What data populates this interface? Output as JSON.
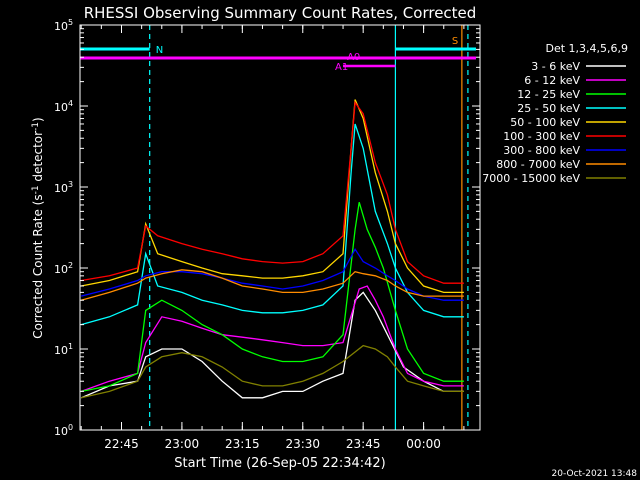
{
  "chart_data": {
    "type": "line",
    "title": "RHESSI Observing Summary Count Rates, Corrected",
    "xlabel": "Start Time (26-Sep-05 22:34:42)",
    "ylabel": "Corrected Count Rate (s^-1 detector^-1)",
    "ylabel_parts": {
      "main": "Corrected Count Rate (s",
      "sup1": "-1",
      "mid": " detector",
      "sup2": "-1",
      "end": ")"
    },
    "y_scale": "log",
    "ylim": [
      1,
      100000
    ],
    "xlim": [
      "22:34:42",
      "00:14:00"
    ],
    "x_ticks": [
      "22:45",
      "23:00",
      "23:15",
      "23:30",
      "23:45",
      "00:00"
    ],
    "y_tick_labels": [
      {
        "base": "10",
        "exp": "0"
      },
      {
        "base": "10",
        "exp": "1"
      },
      {
        "base": "10",
        "exp": "2"
      },
      {
        "base": "10",
        "exp": "3"
      },
      {
        "base": "10",
        "exp": "4"
      },
      {
        "base": "10",
        "exp": "5"
      }
    ],
    "legend_title": "Det 1,3,4,5,6,9",
    "legend_position": "right",
    "footer_date": "20-Oct-2021 13:48",
    "annotations": {
      "night_bars": [
        {
          "label": "N",
          "start": "22:34:42",
          "end": "22:52:00",
          "color": "#00ffff"
        },
        {
          "label": "",
          "start": "23:53:00",
          "end": "00:13:00",
          "color": "#00ffff"
        }
      ],
      "attenuator_bars": [
        {
          "start": "22:34:42",
          "end": "23:53:00",
          "color": "#ff00ff"
        },
        {
          "start": "23:53:00",
          "end": "00:13:00",
          "color": "#ff00ff"
        }
      ],
      "attenuator_labels": [
        {
          "label": "A0",
          "time": "23:41:00"
        },
        {
          "label": "A1",
          "time": "23:38:00"
        }
      ],
      "saa_label": {
        "label": "S",
        "time": "00:09:00",
        "color": "#ff8c00"
      },
      "vertical_lines": [
        {
          "time": "22:52:00",
          "color": "#00ffff",
          "style": "dashed"
        },
        {
          "time": "23:53:00",
          "color": "#00ffff",
          "style": "solid"
        },
        {
          "time": "00:09:30",
          "color": "#ff8c00",
          "style": "solid"
        },
        {
          "time": "00:11:00",
          "color": "#00ffff",
          "style": "dashed"
        }
      ]
    },
    "series": [
      {
        "name": "3 - 6 keV",
        "color": "#ffffff",
        "points": [
          [
            "22:35",
            2.5
          ],
          [
            "22:42",
            3.5
          ],
          [
            "22:49",
            4
          ],
          [
            "22:51",
            8
          ],
          [
            "22:55",
            10
          ],
          [
            "23:00",
            10
          ],
          [
            "23:05",
            7
          ],
          [
            "23:10",
            4
          ],
          [
            "23:15",
            2.5
          ],
          [
            "23:20",
            2.5
          ],
          [
            "23:25",
            3
          ],
          [
            "23:30",
            3
          ],
          [
            "23:35",
            4
          ],
          [
            "23:40",
            5
          ],
          [
            "23:43",
            40
          ],
          [
            "23:45",
            50
          ],
          [
            "23:48",
            30
          ],
          [
            "23:52",
            12
          ],
          [
            "23:55",
            6
          ],
          [
            "24:00",
            4
          ],
          [
            "24:05",
            3
          ],
          [
            "24:10",
            3
          ]
        ]
      },
      {
        "name": "6 - 12 keV",
        "color": "#ff00ff",
        "points": [
          [
            "22:35",
            3
          ],
          [
            "22:42",
            4
          ],
          [
            "22:49",
            5
          ],
          [
            "22:51",
            12
          ],
          [
            "22:55",
            25
          ],
          [
            "23:00",
            22
          ],
          [
            "23:05",
            18
          ],
          [
            "23:10",
            15
          ],
          [
            "23:15",
            14
          ],
          [
            "23:20",
            13
          ],
          [
            "23:25",
            12
          ],
          [
            "23:30",
            11
          ],
          [
            "23:35",
            11
          ],
          [
            "23:40",
            12
          ],
          [
            "23:44",
            55
          ],
          [
            "23:46",
            60
          ],
          [
            "23:48",
            40
          ],
          [
            "23:50",
            25
          ],
          [
            "23:53",
            10
          ],
          [
            "23:56",
            5
          ],
          [
            "24:00",
            4
          ],
          [
            "24:05",
            3.5
          ],
          [
            "24:10",
            3.5
          ]
        ]
      },
      {
        "name": "12 - 25 keV",
        "color": "#00ff00",
        "points": [
          [
            "22:35",
            3
          ],
          [
            "22:42",
            3.5
          ],
          [
            "22:49",
            5
          ],
          [
            "22:51",
            30
          ],
          [
            "22:55",
            40
          ],
          [
            "23:00",
            30
          ],
          [
            "23:05",
            20
          ],
          [
            "23:10",
            15
          ],
          [
            "23:15",
            10
          ],
          [
            "23:20",
            8
          ],
          [
            "23:25",
            7
          ],
          [
            "23:30",
            7
          ],
          [
            "23:35",
            8
          ],
          [
            "23:40",
            15
          ],
          [
            "23:43",
            300
          ],
          [
            "23:44",
            650
          ],
          [
            "23:46",
            300
          ],
          [
            "23:48",
            180
          ],
          [
            "23:50",
            100
          ],
          [
            "23:53",
            30
          ],
          [
            "23:56",
            10
          ],
          [
            "24:00",
            5
          ],
          [
            "24:05",
            4
          ],
          [
            "24:10",
            4
          ]
        ]
      },
      {
        "name": "25 - 50 keV",
        "color": "#00ffff",
        "points": [
          [
            "22:35",
            20
          ],
          [
            "22:42",
            25
          ],
          [
            "22:49",
            35
          ],
          [
            "22:51",
            150
          ],
          [
            "22:54",
            60
          ],
          [
            "23:00",
            50
          ],
          [
            "23:05",
            40
          ],
          [
            "23:10",
            35
          ],
          [
            "23:15",
            30
          ],
          [
            "23:20",
            28
          ],
          [
            "23:25",
            28
          ],
          [
            "23:30",
            30
          ],
          [
            "23:35",
            35
          ],
          [
            "23:40",
            60
          ],
          [
            "23:42",
            1500
          ],
          [
            "23:43",
            6000
          ],
          [
            "23:45",
            3000
          ],
          [
            "23:48",
            500
          ],
          [
            "23:51",
            200
          ],
          [
            "23:53",
            100
          ],
          [
            "23:56",
            50
          ],
          [
            "24:00",
            30
          ],
          [
            "24:05",
            25
          ],
          [
            "24:10",
            25
          ]
        ]
      },
      {
        "name": "50 - 100 keV",
        "color": "#ffd700",
        "points": [
          [
            "22:35",
            60
          ],
          [
            "22:42",
            70
          ],
          [
            "22:49",
            90
          ],
          [
            "22:51",
            350
          ],
          [
            "22:54",
            150
          ],
          [
            "23:00",
            120
          ],
          [
            "23:05",
            100
          ],
          [
            "23:10",
            85
          ],
          [
            "23:15",
            80
          ],
          [
            "23:20",
            75
          ],
          [
            "23:25",
            75
          ],
          [
            "23:30",
            80
          ],
          [
            "23:35",
            90
          ],
          [
            "23:40",
            150
          ],
          [
            "23:42",
            3000
          ],
          [
            "23:43",
            12000
          ],
          [
            "23:45",
            7000
          ],
          [
            "23:48",
            1500
          ],
          [
            "23:51",
            500
          ],
          [
            "23:53",
            200
          ],
          [
            "23:56",
            100
          ],
          [
            "24:00",
            60
          ],
          [
            "24:05",
            50
          ],
          [
            "24:10",
            50
          ]
        ]
      },
      {
        "name": "100 - 300 keV",
        "color": "#ff0000",
        "points": [
          [
            "22:35",
            70
          ],
          [
            "22:42",
            80
          ],
          [
            "22:49",
            100
          ],
          [
            "22:51",
            330
          ],
          [
            "22:54",
            250
          ],
          [
            "23:00",
            200
          ],
          [
            "23:05",
            170
          ],
          [
            "23:10",
            150
          ],
          [
            "23:15",
            130
          ],
          [
            "23:20",
            120
          ],
          [
            "23:25",
            115
          ],
          [
            "23:30",
            120
          ],
          [
            "23:35",
            150
          ],
          [
            "23:40",
            250
          ],
          [
            "23:42",
            3000
          ],
          [
            "23:43",
            11000
          ],
          [
            "23:45",
            8000
          ],
          [
            "23:48",
            2000
          ],
          [
            "23:51",
            800
          ],
          [
            "23:53",
            300
          ],
          [
            "23:56",
            120
          ],
          [
            "24:00",
            80
          ],
          [
            "24:05",
            65
          ],
          [
            "24:10",
            65
          ]
        ]
      },
      {
        "name": "300 - 800 keV",
        "color": "#0000ff",
        "points": [
          [
            "22:35",
            45
          ],
          [
            "22:42",
            55
          ],
          [
            "22:49",
            70
          ],
          [
            "22:51",
            80
          ],
          [
            "22:55",
            90
          ],
          [
            "23:00",
            90
          ],
          [
            "23:05",
            85
          ],
          [
            "23:10",
            75
          ],
          [
            "23:15",
            65
          ],
          [
            "23:20",
            60
          ],
          [
            "23:25",
            55
          ],
          [
            "23:30",
            60
          ],
          [
            "23:35",
            70
          ],
          [
            "23:40",
            90
          ],
          [
            "23:43",
            170
          ],
          [
            "23:45",
            120
          ],
          [
            "23:48",
            100
          ],
          [
            "23:51",
            80
          ],
          [
            "23:53",
            70
          ],
          [
            "23:56",
            55
          ],
          [
            "24:00",
            45
          ],
          [
            "24:05",
            40
          ],
          [
            "24:10",
            40
          ]
        ]
      },
      {
        "name": "800 - 7000 keV",
        "color": "#ff8c00",
        "points": [
          [
            "22:35",
            40
          ],
          [
            "22:42",
            50
          ],
          [
            "22:49",
            65
          ],
          [
            "22:51",
            75
          ],
          [
            "22:55",
            85
          ],
          [
            "23:00",
            95
          ],
          [
            "23:05",
            90
          ],
          [
            "23:10",
            75
          ],
          [
            "23:15",
            60
          ],
          [
            "23:20",
            55
          ],
          [
            "23:25",
            50
          ],
          [
            "23:30",
            50
          ],
          [
            "23:35",
            55
          ],
          [
            "23:40",
            65
          ],
          [
            "23:43",
            90
          ],
          [
            "23:45",
            85
          ],
          [
            "23:48",
            80
          ],
          [
            "23:51",
            70
          ],
          [
            "23:53",
            60
          ],
          [
            "23:56",
            50
          ],
          [
            "24:00",
            45
          ],
          [
            "24:05",
            45
          ],
          [
            "24:10",
            45
          ]
        ]
      },
      {
        "name": "7000 - 15000 keV",
        "color": "#808000",
        "points": [
          [
            "22:35",
            2.5
          ],
          [
            "22:42",
            3
          ],
          [
            "22:49",
            4
          ],
          [
            "22:51",
            6
          ],
          [
            "22:55",
            8
          ],
          [
            "23:00",
            9
          ],
          [
            "23:05",
            8
          ],
          [
            "23:10",
            6
          ],
          [
            "23:15",
            4
          ],
          [
            "23:20",
            3.5
          ],
          [
            "23:25",
            3.5
          ],
          [
            "23:30",
            4
          ],
          [
            "23:35",
            5
          ],
          [
            "23:40",
            7
          ],
          [
            "23:45",
            11
          ],
          [
            "23:48",
            10
          ],
          [
            "23:51",
            8
          ],
          [
            "23:53",
            6
          ],
          [
            "23:56",
            4
          ],
          [
            "24:00",
            3.5
          ],
          [
            "24:05",
            3
          ],
          [
            "24:10",
            3
          ]
        ]
      }
    ]
  }
}
